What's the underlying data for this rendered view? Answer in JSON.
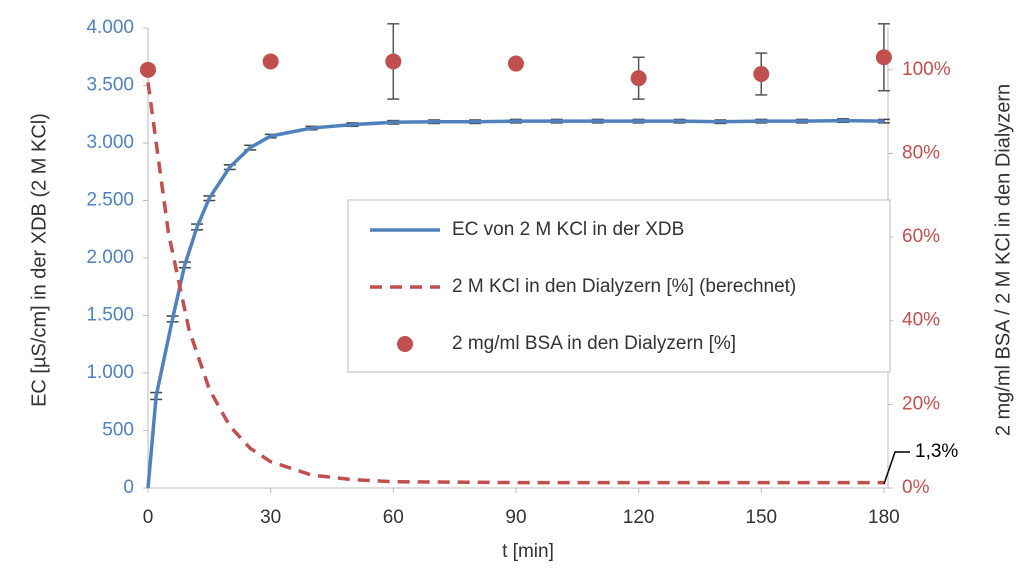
{
  "chart_data": {
    "type": "line",
    "x_label": "t [min]",
    "y_label": "EC [µS/cm] in der XDB (2 M KCl)",
    "y2_label": "2 mg/ml BSA / 2 M KCl in den Dialyzern",
    "xlim": [
      0,
      181
    ],
    "xticks": [
      0,
      30,
      60,
      90,
      120,
      150,
      180
    ],
    "ylim": [
      0,
      4000
    ],
    "yticks": [
      0,
      500,
      {
        "value": 1000,
        "label": "1.000"
      },
      {
        "value": 1500,
        "label": "1.500"
      },
      {
        "value": 2000,
        "label": "2.000"
      },
      {
        "value": 2500,
        "label": "2.500"
      },
      {
        "value": 3000,
        "label": "3.000"
      },
      {
        "value": 3500,
        "label": "3.500"
      },
      {
        "value": 4000,
        "label": "4.000"
      }
    ],
    "y2lim": [
      0,
      110
    ],
    "y2ticks": [
      {
        "value": 0,
        "label": "0%"
      },
      {
        "value": 20,
        "label": "20%"
      },
      {
        "value": 40,
        "label": "40%"
      },
      {
        "value": 60,
        "label": "60%"
      },
      {
        "value": 80,
        "label": "80%"
      },
      {
        "value": 100,
        "label": "100%"
      }
    ],
    "y_color": "#4f81bd",
    "y2_color": "#c0504d",
    "series": [
      {
        "name": "EC von 2 M KCl in der XDB",
        "color": "#4f81bd",
        "style": "solid",
        "axis": "y",
        "x": [
          0,
          2,
          6,
          9,
          12,
          15,
          20,
          25,
          30,
          40,
          50,
          60,
          70,
          80,
          90,
          100,
          110,
          120,
          130,
          140,
          150,
          160,
          170,
          180
        ],
        "values": [
          0,
          800,
          1470,
          1940,
          2270,
          2520,
          2790,
          2960,
          3060,
          3130,
          3160,
          3180,
          3185,
          3185,
          3190,
          3190,
          3190,
          3190,
          3190,
          3185,
          3190,
          3190,
          3195,
          3190
        ],
        "errors": [
          0,
          30,
          25,
          25,
          25,
          20,
          20,
          20,
          15,
          15,
          15,
          15,
          15,
          15,
          15,
          15,
          15,
          15,
          15,
          15,
          15,
          15,
          15,
          15
        ]
      },
      {
        "name": "2 M KCl in den Dialyzern [%] (berechnet)",
        "color": "#c0504d",
        "style": "dashed",
        "axis": "y2",
        "x": [
          0,
          5,
          10,
          15,
          20,
          25,
          30,
          40,
          50,
          60,
          90,
          120,
          150,
          180
        ],
        "values": [
          97,
          61,
          38,
          23.6,
          14.8,
          9.5,
          6.3,
          3.1,
          2,
          1.5,
          1.3,
          1.3,
          1.3,
          1.3
        ]
      },
      {
        "name": "2 mg/ml BSA in den Dialyzern [%]",
        "color": "#c0504d",
        "style": "markers",
        "axis": "y2",
        "x": [
          0,
          30,
          60,
          90,
          120,
          150,
          180
        ],
        "values": [
          100,
          102,
          102,
          101.5,
          98,
          99,
          103
        ],
        "errors": [
          0,
          0,
          9,
          0,
          5,
          5,
          8
        ]
      }
    ],
    "annotation": "1,3%"
  }
}
